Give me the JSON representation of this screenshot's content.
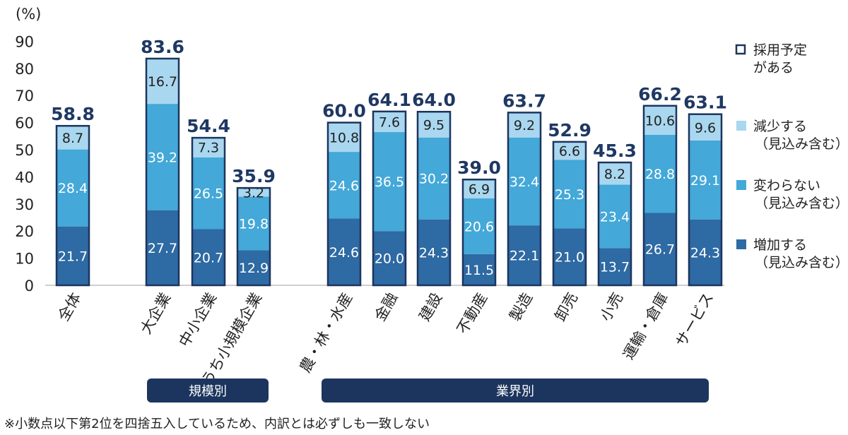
{
  "chart_data": {
    "type": "bar",
    "stacked": true,
    "y_unit": "(%)",
    "ylim": [
      0,
      90
    ],
    "yticks": [
      0,
      10,
      20,
      30,
      40,
      50,
      60,
      70,
      80,
      90
    ],
    "categories": [
      "全体",
      "大企業",
      "中小企業",
      "うち小規模企業",
      "農・林・水産",
      "金融",
      "建設",
      "不動産",
      "製造",
      "卸売",
      "小売",
      "運輸・倉庫",
      "サービス"
    ],
    "series": [
      {
        "name": "増加する（見込み含む）",
        "color": "#2e6aa3",
        "label_color": "#ffffff",
        "values": [
          21.7,
          27.7,
          20.7,
          12.9,
          24.6,
          20.0,
          24.3,
          11.5,
          22.1,
          21.0,
          13.7,
          26.7,
          24.3
        ],
        "labels": [
          "21.7",
          "27.7",
          "20.7",
          "12.9",
          "24.6",
          "20.0",
          "24.3",
          "11.5",
          "22.1",
          "21.0",
          "13.7",
          "26.7",
          "24.3"
        ]
      },
      {
        "name": "変わらない（見込み含む）",
        "color": "#44a8d8",
        "label_color": "#ffffff",
        "values": [
          28.4,
          39.2,
          26.5,
          19.8,
          24.6,
          36.5,
          30.2,
          20.6,
          32.4,
          25.3,
          23.4,
          28.8,
          29.1
        ],
        "labels": [
          "28.4",
          "39.2",
          "26.5",
          "19.8",
          "24.6",
          "36.5",
          "30.2",
          "20.6",
          "32.4",
          "25.3",
          "23.4",
          "28.8",
          "29.1"
        ]
      },
      {
        "name": "減少する（見込み含む）",
        "color": "#a9d7ef",
        "label_color": "#222222",
        "values": [
          8.7,
          16.7,
          7.3,
          3.2,
          10.8,
          7.6,
          9.5,
          6.9,
          9.2,
          6.6,
          8.2,
          10.6,
          9.6
        ],
        "labels": [
          "8.7",
          "16.7",
          "7.3",
          "3.2",
          "10.8",
          "7.6",
          "9.5",
          "6.9",
          "9.2",
          "6.6",
          "8.2",
          "10.6",
          "9.6"
        ]
      }
    ],
    "totals": {
      "name": "採用予定がある",
      "values": [
        58.8,
        83.6,
        54.4,
        35.9,
        60.0,
        64.1,
        64.0,
        39.0,
        63.7,
        52.9,
        45.3,
        66.2,
        63.1
      ],
      "labels": [
        "58.8",
        "83.6",
        "54.4",
        "35.9",
        "60.0",
        "64.1",
        "64.0",
        "39.0",
        "63.7",
        "52.9",
        "45.3",
        "66.2",
        "63.1"
      ]
    },
    "legend": {
      "placement": "right",
      "items": [
        {
          "lines": [
            "採用予定",
            "がある"
          ],
          "type": "outline",
          "color": "#1c355e"
        },
        {
          "lines": [
            "減少する",
            "（見込み含む）"
          ],
          "type": "fill",
          "color": "#a9d7ef"
        },
        {
          "lines": [
            "変わらない",
            "（見込み含む）"
          ],
          "type": "fill",
          "color": "#44a8d8"
        },
        {
          "lines": [
            "増加する",
            "（見込み含む）"
          ],
          "type": "fill",
          "color": "#2e6aa3"
        }
      ]
    },
    "groups": [
      {
        "label": "規模別",
        "categories": [
          "大企業",
          "中小企業",
          "うち小規模企業"
        ]
      },
      {
        "label": "業界別",
        "categories": [
          "農・林・水産",
          "金融",
          "建設",
          "不動産",
          "製造",
          "卸売",
          "小売",
          "運輸・倉庫",
          "サービス"
        ]
      }
    ],
    "outline_color": "#1c355e"
  },
  "note": "※小数点以下第2位を四捨五入しているため、内訳とは必ずしも一致しない"
}
